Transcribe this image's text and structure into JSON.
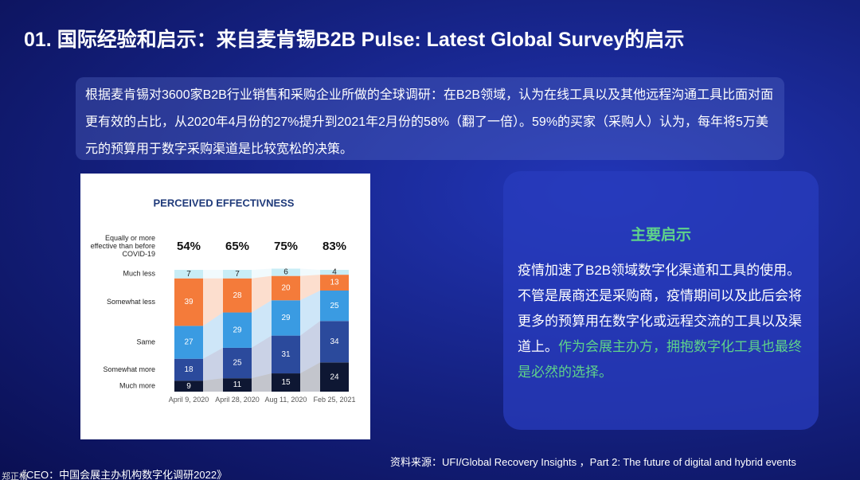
{
  "header": {
    "title": "01. 国际经验和启示：来自麦肯锡B2B Pulse: Latest Global Survey的启示"
  },
  "intro": {
    "text": "根据麦肯锡对3600家B2B行业销售和采购企业所做的全球调研：在B2B领域，认为在线工具以及其他远程沟通工具比面对面更有效的占比，从2020年4月份的27%提升到2021年2月份的58%（翻了一倍）。59%的买家（采购人）认为，每年将5万美元的预算用于数字采购渠道是比较宽松的决策。"
  },
  "chart_data": {
    "type": "stacked-bar",
    "title": "PERCEIVED EFFECTIVNESS",
    "categories": [
      "April 9, 2020",
      "April 28, 2020",
      "Aug 11, 2020",
      "Feb 25, 2021"
    ],
    "summary": {
      "label": "Equally or more effective than before COVID-19",
      "values": [
        54,
        65,
        75,
        83
      ],
      "value_labels": [
        "54%",
        "65%",
        "75%",
        "83%"
      ]
    },
    "series": [
      {
        "name": "Much more",
        "color": "#0e1733",
        "values": [
          9,
          11,
          15,
          24
        ]
      },
      {
        "name": "Somewhat more",
        "color": "#2b4a9c",
        "values": [
          18,
          25,
          31,
          34
        ]
      },
      {
        "name": "Same",
        "color": "#3a9be2",
        "values": [
          27,
          29,
          29,
          25
        ]
      },
      {
        "name": "Somewhat less",
        "color": "#f47b3a",
        "values": [
          39,
          28,
          20,
          13
        ]
      },
      {
        "name": "Much less",
        "color": "#c8edf6",
        "values": [
          7,
          7,
          6,
          4
        ]
      }
    ],
    "ylim": [
      0,
      100
    ]
  },
  "takeaway": {
    "heading": "主要启示",
    "body": "疫情加速了B2B领域数字化渠道和工具的使用。不管是展商还是采购商，疫情期间以及此后会将更多的预算用在数字化或远程交流的工具以及渠道上。",
    "highlight": "作为会展主办方，拥抱数字化工具也最终是必然的选择。"
  },
  "source": "资料来源：UFI/Global Recovery Insights ，Part 2: The future of digital and hybrid events",
  "footer": {
    "watermark": "郑正杨",
    "text": "《CEO：中国会展主办机构数字化调研2022》"
  }
}
